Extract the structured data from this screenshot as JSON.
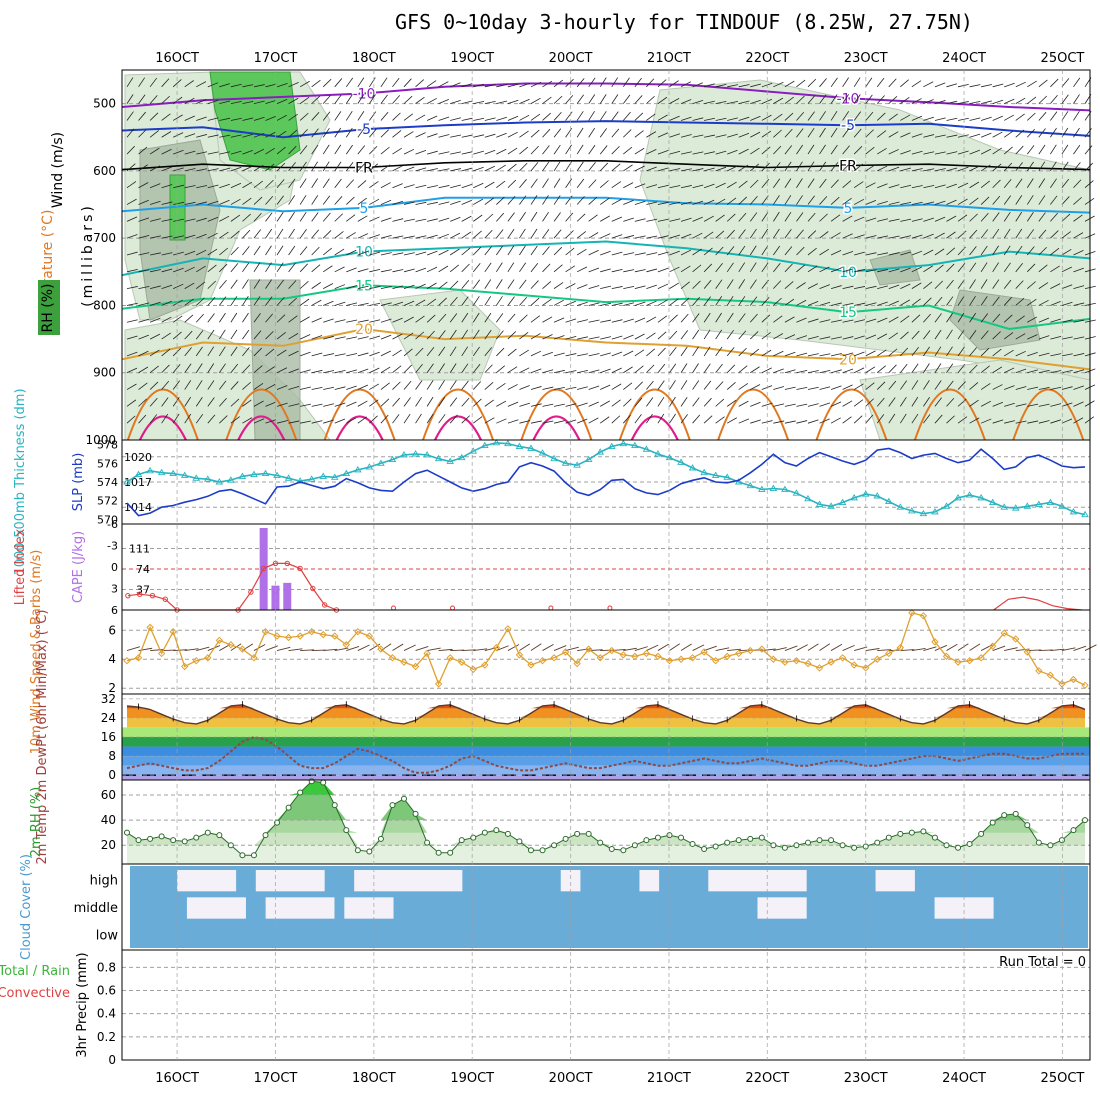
{
  "title": "GFS 0~10day 3-hourly for TINDOUF (8.25W, 27.75N)",
  "colors": {
    "purple": "#8a1cc0",
    "blue": "#1c3cc8",
    "midblue": "#1e78e0",
    "lightblue": "#1ea0e8",
    "teal": "#14b4b4",
    "green": "#14c884",
    "orange": "#e0a030",
    "darkorange": "#e07820",
    "magenta": "#e01c8c",
    "cyan": "#28b4c0",
    "slp": "#1c3cc8",
    "rh_green": "#3cb44b",
    "cloud": "#6aacd8",
    "grid": "#a0a0a0"
  },
  "time_axis": {
    "labels": [
      "16OCT",
      "17OCT",
      "18OCT",
      "19OCT",
      "20OCT",
      "21OCT",
      "22OCT",
      "23OCT",
      "24OCT",
      "25OCT"
    ],
    "day_start": 15.44,
    "day_end": 25.28
  },
  "chart_data": [
    {
      "type": "contour",
      "id": "upper_air",
      "ylabel": "(millibars)",
      "labels": {
        "wind": "Wind (m/s)",
        "temp": "Temperature (°C)",
        "rh": "RH (%)"
      },
      "y_ticks": [
        500,
        600,
        700,
        800,
        900,
        1000
      ],
      "ylim": [
        450,
        1000
      ],
      "isotherms": [
        {
          "label": "-10",
          "color": "purple",
          "level_mb": [
            505,
            495,
            490,
            485,
            475,
            470,
            470,
            472,
            482,
            492,
            498,
            505,
            510
          ]
        },
        {
          "label": "-5",
          "color": "blue",
          "level_mb": [
            540,
            535,
            550,
            538,
            532,
            528,
            526,
            528,
            530,
            532,
            530,
            540,
            548
          ]
        },
        {
          "label": "FR",
          "color": "black",
          "level_mb": [
            598,
            590,
            595,
            595,
            588,
            585,
            585,
            590,
            595,
            592,
            590,
            595,
            598
          ]
        },
        {
          "label": "5",
          "color": "lightblue",
          "level_mb": [
            660,
            650,
            660,
            655,
            640,
            640,
            640,
            648,
            650,
            655,
            650,
            658,
            662
          ]
        },
        {
          "label": "10",
          "color": "teal",
          "level_mb": [
            755,
            730,
            740,
            720,
            715,
            710,
            705,
            715,
            730,
            750,
            740,
            720,
            730
          ]
        },
        {
          "label": "15",
          "color": "green",
          "level_mb": [
            805,
            790,
            790,
            770,
            775,
            785,
            795,
            790,
            795,
            810,
            800,
            835,
            820
          ]
        },
        {
          "label": "20",
          "color": "orange",
          "level_mb": [
            880,
            855,
            860,
            835,
            850,
            845,
            855,
            860,
            875,
            880,
            870,
            880,
            895
          ]
        }
      ],
      "isotherm_points": 13
    },
    {
      "type": "line",
      "id": "slp_thickness",
      "ylabel_left": "1000-500mb Thickness (dm)",
      "ylabel_right": "SLP (mb)",
      "thickness_ticks": [
        570,
        572,
        574,
        576,
        578
      ],
      "slp_ticks": [
        1014,
        1017,
        1020
      ],
      "series": [
        {
          "name": "Thickness",
          "color": "cyan",
          "values": [
            574.0,
            574.8,
            575.2,
            575.0,
            574.9,
            574.7,
            574.4,
            574.3,
            574.0,
            574.2,
            574.6,
            574.8,
            574.9,
            574.7,
            574.4,
            574.1,
            574.3,
            574.6,
            574.5,
            574.9,
            575.3,
            575.6,
            576.0,
            576.4,
            576.9,
            577.0,
            576.9,
            576.5,
            576.2,
            576.6,
            577.3,
            577.9,
            578.2,
            578.1,
            577.8,
            577.6,
            577.1,
            576.5,
            576.0,
            575.8,
            576.4,
            577.2,
            577.8,
            578.1,
            577.9,
            577.5,
            577.0,
            576.6,
            576.1,
            575.5,
            575.0,
            574.7,
            574.5,
            574.0,
            573.6,
            573.2,
            573.3,
            573.2,
            572.8,
            572.2,
            571.6,
            571.4,
            571.8,
            572.3,
            572.7,
            572.5,
            571.9,
            571.3,
            570.9,
            570.6,
            570.8,
            571.4,
            572.3,
            572.6,
            572.3,
            571.8,
            571.3,
            571.2,
            571.4,
            571.6,
            571.8,
            571.4,
            570.8,
            570.5
          ]
        },
        {
          "name": "SLP",
          "color": "slp",
          "values": [
            1014.5,
            1013.0,
            1013.3,
            1014.0,
            1014.2,
            1014.6,
            1014.9,
            1015.3,
            1015.9,
            1016.1,
            1015.6,
            1015.0,
            1014.4,
            1016.4,
            1016.5,
            1017.0,
            1016.6,
            1016.2,
            1016.5,
            1017.4,
            1016.9,
            1016.3,
            1016.0,
            1015.9,
            1017.0,
            1018.0,
            1018.4,
            1017.7,
            1017.0,
            1016.3,
            1015.9,
            1016.2,
            1016.7,
            1017.0,
            1018.8,
            1019.3,
            1018.9,
            1018.3,
            1016.9,
            1015.8,
            1015.4,
            1016.1,
            1017.2,
            1017.3,
            1016.2,
            1015.7,
            1015.5,
            1016.0,
            1016.8,
            1017.2,
            1017.5,
            1017.0,
            1016.9,
            1017.2,
            1018.1,
            1019.1,
            1020.3,
            1019.3,
            1018.9,
            1019.8,
            1020.5,
            1020.0,
            1019.5,
            1019.1,
            1019.6,
            1020.8,
            1021.0,
            1020.5,
            1019.8,
            1020.2,
            1020.4,
            1019.8,
            1019.3,
            1019.6,
            1020.9,
            1019.8,
            1018.5,
            1018.8,
            1019.9,
            1020.2,
            1019.6,
            1018.9,
            1018.7,
            1018.8
          ]
        }
      ]
    },
    {
      "type": "bar+line",
      "id": "lifted_cape",
      "ylabel_left": "Lifted Index",
      "ylabel_right": "CAPE (J/kg)",
      "li_ticks": [
        "-6",
        "-3",
        "0",
        "3",
        "6"
      ],
      "cape_ticks": [
        37,
        74,
        111
      ],
      "cape_bars": [
        {
          "x_day": 16.88,
          "value": 148
        },
        {
          "x_day": 17.0,
          "value": 44
        },
        {
          "x_day": 17.12,
          "value": 49
        }
      ],
      "lifted_index_series": [
        {
          "x_day": 15.5,
          "value": 4.0
        },
        {
          "x_day": 15.62,
          "value": 3.8
        },
        {
          "x_day": 15.75,
          "value": 4.0
        },
        {
          "x_day": 15.88,
          "value": 4.5
        },
        {
          "x_day": 16.0,
          "value": 6.0
        },
        {
          "x_day": 16.62,
          "value": 6.0
        },
        {
          "x_day": 16.75,
          "value": 3.5
        },
        {
          "x_day": 16.88,
          "value": 0.2
        },
        {
          "x_day": 17.0,
          "value": -0.5
        },
        {
          "x_day": 17.12,
          "value": -0.5
        },
        {
          "x_day": 17.25,
          "value": 0.2
        },
        {
          "x_day": 17.38,
          "value": 3.0
        },
        {
          "x_day": 17.5,
          "value": 5.3
        },
        {
          "x_day": 17.62,
          "value": 6.0
        }
      ]
    },
    {
      "type": "line",
      "id": "wind10m",
      "ylabel": "10m Wind Speed & Barbs (m/s)",
      "y_ticks": [
        2,
        4,
        6
      ],
      "ylim": [
        1.6,
        7.4
      ],
      "values": [
        3.9,
        4.1,
        6.2,
        4.4,
        5.9,
        3.5,
        3.9,
        4.1,
        5.3,
        5.0,
        4.7,
        4.1,
        5.9,
        5.6,
        5.5,
        5.6,
        5.9,
        5.7,
        5.6,
        5.0,
        5.9,
        5.6,
        4.7,
        4.1,
        3.8,
        3.5,
        4.4,
        2.3,
        4.1,
        3.8,
        3.3,
        3.6,
        4.8,
        6.1,
        4.3,
        3.6,
        3.9,
        4.1,
        4.5,
        3.7,
        4.7,
        4.1,
        4.6,
        4.3,
        4.2,
        4.4,
        4.2,
        3.9,
        4.0,
        4.1,
        4.5,
        3.9,
        4.2,
        4.4,
        4.6,
        4.7,
        4.0,
        3.8,
        3.9,
        3.7,
        3.4,
        3.8,
        4.1,
        3.6,
        3.4,
        4.0,
        4.4,
        4.8,
        7.2,
        7.0,
        5.2,
        4.2,
        3.8,
        3.9,
        4.1,
        4.9,
        5.8,
        5.4,
        4.5,
        3.2,
        2.9,
        2.3,
        2.6,
        2.2
      ]
    },
    {
      "type": "area",
      "id": "temp2m",
      "ylabel": "2m Temp 2m DewPt (6hr Min/Max) (°C)",
      "y_ticks": [
        0,
        8,
        16,
        24,
        32
      ],
      "ylim": [
        -2,
        34
      ],
      "temperature": [
        29,
        28.5,
        27.5,
        25.5,
        23.5,
        22.0,
        21.5,
        23,
        26,
        29,
        29.5,
        27.5,
        25.5,
        23.5,
        22.0,
        21.5,
        23,
        26,
        29,
        29.5,
        27.5,
        25.5,
        23.5,
        22.0,
        21.5,
        23,
        26,
        29,
        29.5,
        27.5,
        25.5,
        23.5,
        22.0,
        21.5,
        23,
        26,
        29,
        29.5,
        27.5,
        25.5,
        23.5,
        22.0,
        21.5,
        23,
        26,
        29,
        29.5,
        27.5,
        25.5,
        23.5,
        22.0,
        21.5,
        23,
        26,
        29,
        29.5,
        27.5,
        25.5,
        23.5,
        22.0,
        21.5,
        23,
        26,
        29,
        29.5,
        27.5,
        25.5,
        23.5,
        22.0,
        21.5,
        23,
        26,
        29,
        29.5,
        27.5,
        25.5,
        23.5,
        22.0,
        21.5,
        23,
        26,
        29,
        29.5,
        27.5
      ],
      "dewpoint": [
        3,
        4,
        5,
        4,
        3,
        2,
        2,
        3,
        6,
        10,
        14,
        16,
        15,
        12,
        8,
        4,
        3,
        3,
        5,
        8,
        11,
        10,
        8,
        6,
        3,
        1,
        1,
        2,
        4,
        7,
        8,
        6,
        4,
        3,
        2,
        2,
        3,
        4,
        5,
        4,
        3,
        3,
        4,
        5,
        6,
        5,
        4,
        4,
        5,
        6,
        7,
        6,
        5,
        5,
        6,
        7,
        6,
        5,
        4,
        4,
        5,
        6,
        6,
        5,
        4,
        4,
        5,
        6,
        7,
        8,
        8,
        7,
        6,
        7,
        8,
        9,
        9,
        8,
        7,
        7,
        8,
        9,
        9,
        9
      ]
    },
    {
      "type": "area",
      "id": "rh2m",
      "ylabel": "2m RH (%)",
      "y_ticks": [
        20,
        40,
        60
      ],
      "ylim": [
        5,
        72
      ],
      "values": [
        30,
        24,
        25,
        27,
        24,
        23,
        26,
        30,
        28,
        20,
        12,
        12,
        28,
        38,
        50,
        62,
        71,
        70,
        52,
        32,
        16,
        15,
        25,
        52,
        57,
        45,
        22,
        14,
        14,
        24,
        26,
        30,
        32,
        29,
        23,
        16,
        16,
        20,
        25,
        29,
        29,
        22,
        17,
        16,
        20,
        24,
        26,
        28,
        26,
        21,
        17,
        19,
        22,
        24,
        25,
        26,
        20,
        18,
        20,
        22,
        24,
        24,
        20,
        18,
        19,
        22,
        26,
        29,
        30,
        31,
        26,
        20,
        18,
        21,
        29,
        38,
        44,
        45,
        36,
        22,
        20,
        24,
        32,
        40
      ]
    },
    {
      "type": "heatmap",
      "id": "cloud",
      "ylabel": "Cloud Cover (%)",
      "levels": [
        "high",
        "middle",
        "low"
      ]
    },
    {
      "type": "bar",
      "id": "precip",
      "ylabel": "3hr Precip (mm)",
      "legend_left": [
        "Total / Rain",
        "Convective"
      ],
      "y_ticks": [
        0,
        0.2,
        0.4,
        0.6,
        0.8
      ],
      "ylim": [
        0,
        0.95
      ],
      "run_total_label": "Run Total = 0",
      "values": []
    }
  ]
}
